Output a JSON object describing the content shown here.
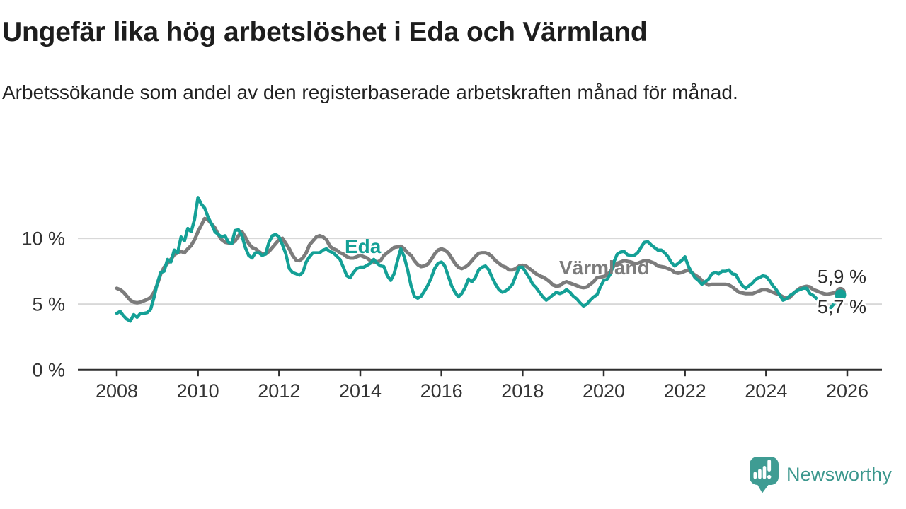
{
  "header": {
    "title": "Ungefär lika hög arbetslöshet i Eda och Värmland",
    "subtitle": "Arbetssökande som andel av den registerbaserade arbetskraften månad för månad."
  },
  "colors": {
    "eda": "#14a096",
    "varmland": "#7c7c7c",
    "axis": "#2e2e2e",
    "grid": "#d8d8d8",
    "tick_text": "#333333",
    "logo": "#3f9c93",
    "logo_text": "#3b978d",
    "background": "#ffffff"
  },
  "logo": {
    "text": "Newsworthy"
  },
  "chart_data": {
    "type": "line",
    "unit": "%",
    "x_start": "2008-01",
    "x_end": "2025-11",
    "x_ticks": [
      "2008",
      "2010",
      "2012",
      "2014",
      "2016",
      "2018",
      "2020",
      "2022",
      "2024",
      "2026"
    ],
    "y_ticks": [
      {
        "label": "0 %",
        "value": 0
      },
      {
        "label": "5 %",
        "value": 5
      },
      {
        "label": "10 %",
        "value": 10
      }
    ],
    "ylim": [
      0,
      14
    ],
    "grid": "horizontal-only",
    "legend": "inline-series-labels",
    "series": [
      {
        "id": "varmland",
        "name": "Värmland",
        "color": "#7c7c7c",
        "end_label": "5,9 %",
        "values": [
          6.2,
          6.1,
          5.9,
          5.6,
          5.3,
          5.15,
          5.1,
          5.15,
          5.25,
          5.35,
          5.5,
          5.9,
          6.5,
          7.3,
          7.8,
          8.1,
          8.4,
          8.75,
          8.9,
          9.0,
          8.9,
          9.2,
          9.45,
          9.9,
          10.5,
          11.0,
          11.5,
          11.4,
          11.1,
          10.8,
          10.3,
          9.9,
          9.7,
          9.65,
          9.6,
          9.8,
          10.2,
          10.5,
          10.1,
          9.6,
          9.3,
          9.2,
          9.0,
          8.8,
          8.8,
          9.0,
          9.3,
          9.6,
          9.9,
          10.0,
          9.6,
          9.2,
          8.7,
          8.35,
          8.3,
          8.5,
          8.9,
          9.5,
          9.8,
          10.1,
          10.2,
          10.1,
          9.9,
          9.4,
          9.2,
          9.1,
          8.9,
          8.8,
          8.6,
          8.5,
          8.5,
          8.6,
          8.7,
          8.6,
          8.5,
          8.3,
          8.2,
          8.2,
          8.3,
          8.7,
          8.9,
          9.1,
          9.3,
          9.35,
          9.4,
          9.2,
          8.9,
          8.7,
          8.3,
          8.0,
          7.85,
          7.9,
          8.05,
          8.4,
          8.8,
          9.1,
          9.2,
          9.1,
          8.9,
          8.5,
          8.1,
          7.8,
          7.7,
          7.8,
          8.0,
          8.3,
          8.6,
          8.85,
          8.9,
          8.9,
          8.8,
          8.6,
          8.3,
          8.1,
          7.9,
          7.8,
          7.6,
          7.6,
          7.7,
          7.9,
          7.95,
          7.9,
          7.7,
          7.5,
          7.3,
          7.15,
          7.05,
          6.9,
          6.7,
          6.45,
          6.35,
          6.4,
          6.6,
          6.7,
          6.6,
          6.5,
          6.4,
          6.3,
          6.25,
          6.3,
          6.5,
          6.7,
          7.0,
          7.05,
          7.1,
          7.2,
          7.5,
          7.9,
          8.1,
          8.2,
          8.3,
          8.25,
          8.2,
          8.1,
          8.1,
          8.2,
          8.3,
          8.3,
          8.2,
          8.1,
          7.9,
          7.85,
          7.8,
          7.7,
          7.6,
          7.4,
          7.35,
          7.4,
          7.5,
          7.6,
          7.4,
          7.2,
          7.05,
          6.8,
          6.6,
          6.45,
          6.5,
          6.5,
          6.5,
          6.5,
          6.5,
          6.45,
          6.3,
          6.1,
          5.9,
          5.85,
          5.8,
          5.8,
          5.8,
          5.9,
          6.0,
          6.1,
          6.1,
          6.0,
          5.9,
          5.8,
          5.7,
          5.55,
          5.45,
          5.5,
          5.8,
          6.0,
          6.2,
          6.3,
          6.35,
          6.3,
          6.1,
          6.0,
          5.9,
          5.8,
          5.75,
          5.8,
          5.85,
          5.9,
          5.9
        ]
      },
      {
        "id": "eda",
        "name": "Eda",
        "color": "#14a096",
        "end_label": "5,7 %",
        "values": [
          4.3,
          4.45,
          4.1,
          3.85,
          3.7,
          4.2,
          4.0,
          4.3,
          4.3,
          4.35,
          4.6,
          5.5,
          6.6,
          7.4,
          7.5,
          8.4,
          8.2,
          9.1,
          8.9,
          10.1,
          9.8,
          10.75,
          10.5,
          11.45,
          13.1,
          12.6,
          12.3,
          11.6,
          11.1,
          10.5,
          10.3,
          10.1,
          10.2,
          9.7,
          9.6,
          10.6,
          10.65,
          10.2,
          9.3,
          8.7,
          8.5,
          8.9,
          8.9,
          8.7,
          8.8,
          9.7,
          10.2,
          10.3,
          10.1,
          9.5,
          8.8,
          7.7,
          7.4,
          7.3,
          7.2,
          7.4,
          8.2,
          8.6,
          8.9,
          8.9,
          8.9,
          9.1,
          9.2,
          9.0,
          8.9,
          8.65,
          8.4,
          7.8,
          7.15,
          7.0,
          7.4,
          7.7,
          7.8,
          7.8,
          7.95,
          8.1,
          8.4,
          8.1,
          7.9,
          7.85,
          7.15,
          6.8,
          7.3,
          8.3,
          9.2,
          8.6,
          7.6,
          6.4,
          5.6,
          5.45,
          5.6,
          6.0,
          6.45,
          7.0,
          7.7,
          8.1,
          8.2,
          7.9,
          7.15,
          6.4,
          5.9,
          5.55,
          5.8,
          6.25,
          6.9,
          6.7,
          7.0,
          7.6,
          7.8,
          7.9,
          7.6,
          7.0,
          6.5,
          6.1,
          5.9,
          6.0,
          6.2,
          6.5,
          7.15,
          7.8,
          7.8,
          7.4,
          7.0,
          6.5,
          6.25,
          5.9,
          5.55,
          5.3,
          5.5,
          5.7,
          5.9,
          5.8,
          5.9,
          6.1,
          5.9,
          5.6,
          5.4,
          5.1,
          4.85,
          5.0,
          5.3,
          5.55,
          5.7,
          6.3,
          6.8,
          6.9,
          7.3,
          8.2,
          8.8,
          8.95,
          9.0,
          8.75,
          8.7,
          8.7,
          8.9,
          9.3,
          9.7,
          9.75,
          9.5,
          9.3,
          9.1,
          9.1,
          8.9,
          8.6,
          8.15,
          7.9,
          8.1,
          8.3,
          8.6,
          7.9,
          7.4,
          7.0,
          6.8,
          6.5,
          6.7,
          6.9,
          7.3,
          7.4,
          7.3,
          7.5,
          7.5,
          7.6,
          7.3,
          7.25,
          6.8,
          6.4,
          6.2,
          6.4,
          6.6,
          6.9,
          7.0,
          7.15,
          7.1,
          6.8,
          6.4,
          6.1,
          5.7,
          5.3,
          5.4,
          5.65,
          5.8,
          6.0,
          6.1,
          6.2,
          6.2,
          5.8,
          5.65,
          5.4,
          5.2,
          4.85,
          4.6,
          4.7,
          5.0,
          5.4,
          5.7
        ]
      }
    ]
  }
}
